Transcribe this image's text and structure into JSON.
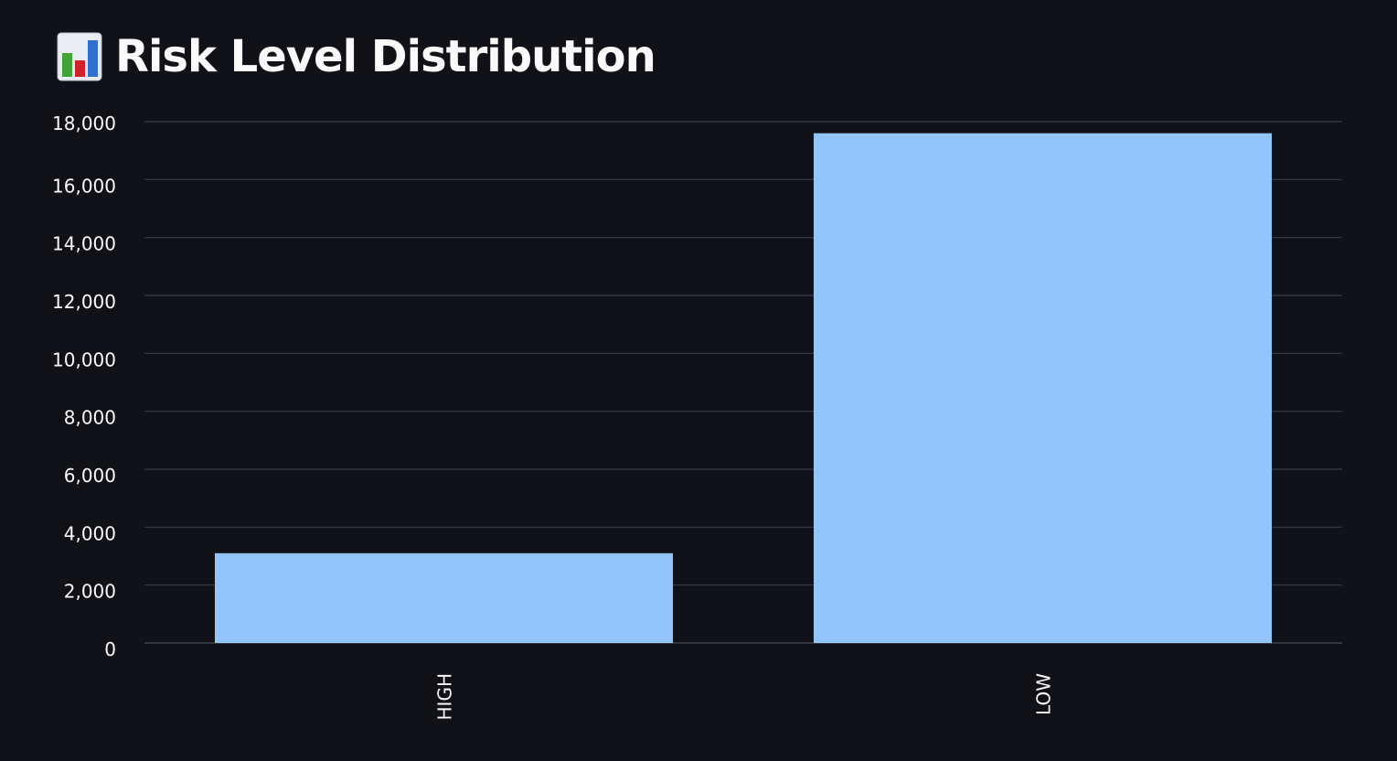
{
  "header": {
    "title": "Risk Level Distribution",
    "icon": "bar-chart-emoji-icon"
  },
  "chart_data": {
    "type": "bar",
    "categories": [
      "HIGH",
      "LOW"
    ],
    "values": [
      3100,
      17600
    ],
    "title": "Risk Level Distribution",
    "xlabel": "",
    "ylabel": "",
    "ylim": [
      0,
      18000
    ],
    "yticks": [
      0,
      2000,
      4000,
      6000,
      8000,
      10000,
      12000,
      14000,
      16000,
      18000
    ],
    "ytick_labels": [
      "0",
      "2,000",
      "4,000",
      "6,000",
      "8,000",
      "10,000",
      "12,000",
      "14,000",
      "16,000",
      "18,000"
    ],
    "grid": true,
    "bar_color": "#92c5f9",
    "background_color": "#111217",
    "grid_color": "#3a3c44",
    "text_color": "#fafafa"
  }
}
